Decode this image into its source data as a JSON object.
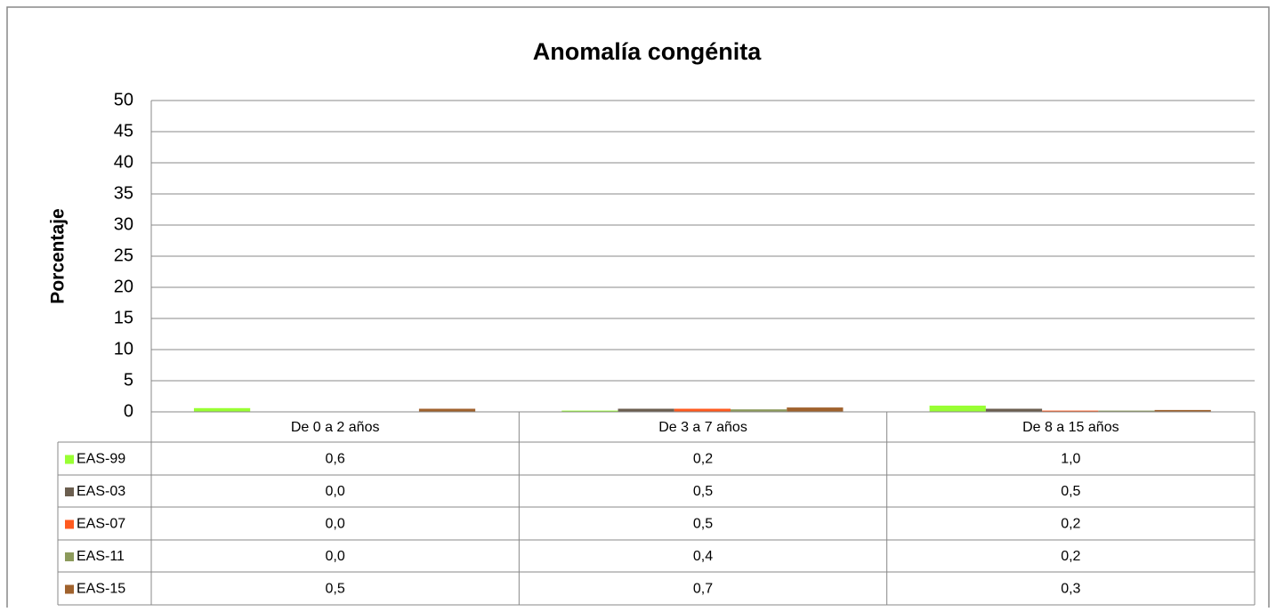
{
  "chart_data": {
    "type": "bar",
    "title": "Anomalía congénita",
    "ylabel": "Porcentaje",
    "categories": [
      "De 0 a 2 años",
      "De 3 a 7 años",
      "De 8 a 15 años"
    ],
    "series": [
      {
        "name": "EAS-99",
        "color": "#99ff33",
        "values": [
          0.6,
          0.2,
          1.0
        ],
        "value_labels": [
          "0,6",
          "0,2",
          "1,0"
        ]
      },
      {
        "name": "EAS-03",
        "color": "#6b5e4f",
        "values": [
          0.0,
          0.5,
          0.5
        ],
        "value_labels": [
          "0,0",
          "0,5",
          "0,5"
        ]
      },
      {
        "name": "EAS-07",
        "color": "#ff5a1f",
        "values": [
          0.0,
          0.5,
          0.2
        ],
        "value_labels": [
          "0,0",
          "0,5",
          "0,2"
        ]
      },
      {
        "name": "EAS-11",
        "color": "#8c9a5b",
        "values": [
          0.0,
          0.4,
          0.2
        ],
        "value_labels": [
          "0,0",
          "0,4",
          "0,2"
        ]
      },
      {
        "name": "EAS-15",
        "color": "#a0622d",
        "values": [
          0.5,
          0.7,
          0.3
        ],
        "value_labels": [
          "0,5",
          "0,7",
          "0,3"
        ]
      }
    ],
    "ylim": [
      0,
      50
    ],
    "yticks": [
      0,
      5,
      10,
      15,
      20,
      25,
      30,
      35,
      40,
      45,
      50
    ],
    "grid": true
  }
}
